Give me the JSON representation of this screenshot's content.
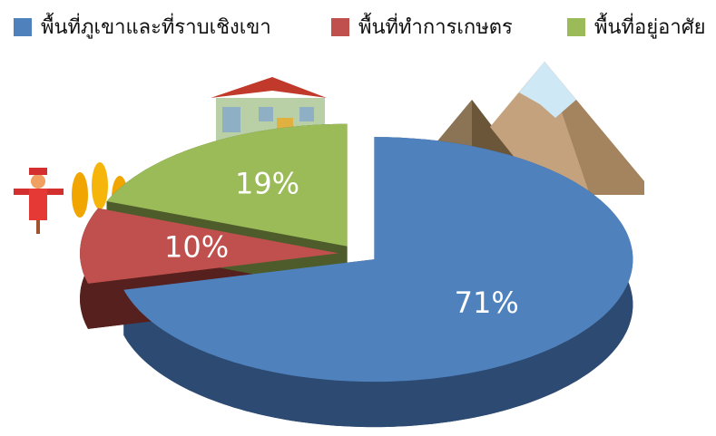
{
  "chart_data": {
    "type": "pie3d",
    "categories": [
      "พื้นที่ภูเขาและที่ราบเชิงเขา",
      "พื้นที่ทำการเกษตร",
      "พื้นที่อยู่อาศัย"
    ],
    "values": [
      71,
      10,
      19
    ],
    "value_labels": [
      "71%",
      "10%",
      "19%"
    ],
    "colors": [
      "#4f81bd",
      "#c0504d",
      "#9bbb59"
    ],
    "side_colors": [
      "#2c4a72",
      "#55201d",
      "#4d5c2a"
    ],
    "legend": "top"
  }
}
